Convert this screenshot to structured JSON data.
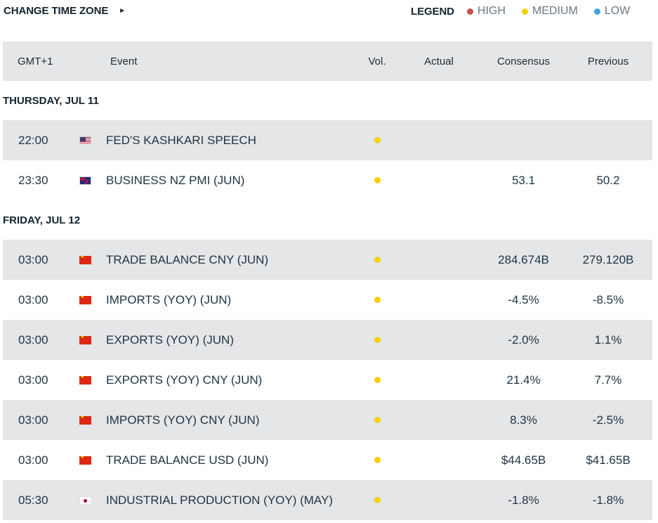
{
  "toolbar": {
    "timezone_label": "CHANGE TIME ZONE",
    "timezone_arrow": "►"
  },
  "legend": {
    "title": "LEGEND",
    "items": [
      {
        "label": "HIGH",
        "color": "#c9504e"
      },
      {
        "label": "MEDIUM",
        "color": "#f5d000"
      },
      {
        "label": "LOW",
        "color": "#3fa6dc"
      }
    ]
  },
  "table": {
    "headers": {
      "time": "GMT+1",
      "event": "Event",
      "vol": "Vol.",
      "actual": "Actual",
      "consensus": "Consensus",
      "previous": "Previous"
    },
    "days": [
      {
        "label": "THURSDAY, JUL 11",
        "events": [
          {
            "time": "22:00",
            "flag": "us-flag-icon",
            "event": "FED'S KASHKARI SPEECH",
            "volatility": "medium",
            "actual": "",
            "consensus": "",
            "previous": ""
          },
          {
            "time": "23:30",
            "flag": "nz-flag-icon",
            "event": "BUSINESS NZ PMI (JUN)",
            "volatility": "medium",
            "actual": "",
            "consensus": "53.1",
            "previous": "50.2"
          }
        ]
      },
      {
        "label": "FRIDAY, JUL 12",
        "events": [
          {
            "time": "03:00",
            "flag": "cn-flag-icon",
            "event": "TRADE BALANCE CNY (JUN)",
            "volatility": "medium",
            "actual": "",
            "consensus": "284.674B",
            "previous": "279.120B"
          },
          {
            "time": "03:00",
            "flag": "cn-flag-icon",
            "event": "IMPORTS (YOY) (JUN)",
            "volatility": "medium",
            "actual": "",
            "consensus": "-4.5%",
            "previous": "-8.5%"
          },
          {
            "time": "03:00",
            "flag": "cn-flag-icon",
            "event": "EXPORTS (YOY) (JUN)",
            "volatility": "medium",
            "actual": "",
            "consensus": "-2.0%",
            "previous": "1.1%"
          },
          {
            "time": "03:00",
            "flag": "cn-flag-icon",
            "event": "EXPORTS (YOY) CNY (JUN)",
            "volatility": "medium",
            "actual": "",
            "consensus": "21.4%",
            "previous": "7.7%"
          },
          {
            "time": "03:00",
            "flag": "cn-flag-icon",
            "event": "IMPORTS (YOY) CNY (JUN)",
            "volatility": "medium",
            "actual": "",
            "consensus": "8.3%",
            "previous": "-2.5%"
          },
          {
            "time": "03:00",
            "flag": "cn-flag-icon",
            "event": "TRADE BALANCE USD (JUN)",
            "volatility": "medium",
            "actual": "",
            "consensus": "$44.65B",
            "previous": "$41.65B"
          },
          {
            "time": "05:30",
            "flag": "jp-flag-icon",
            "event": "INDUSTRIAL PRODUCTION (YOY) (MAY)",
            "volatility": "medium",
            "actual": "",
            "consensus": "-1.8%",
            "previous": "-1.8%"
          }
        ]
      }
    ]
  }
}
